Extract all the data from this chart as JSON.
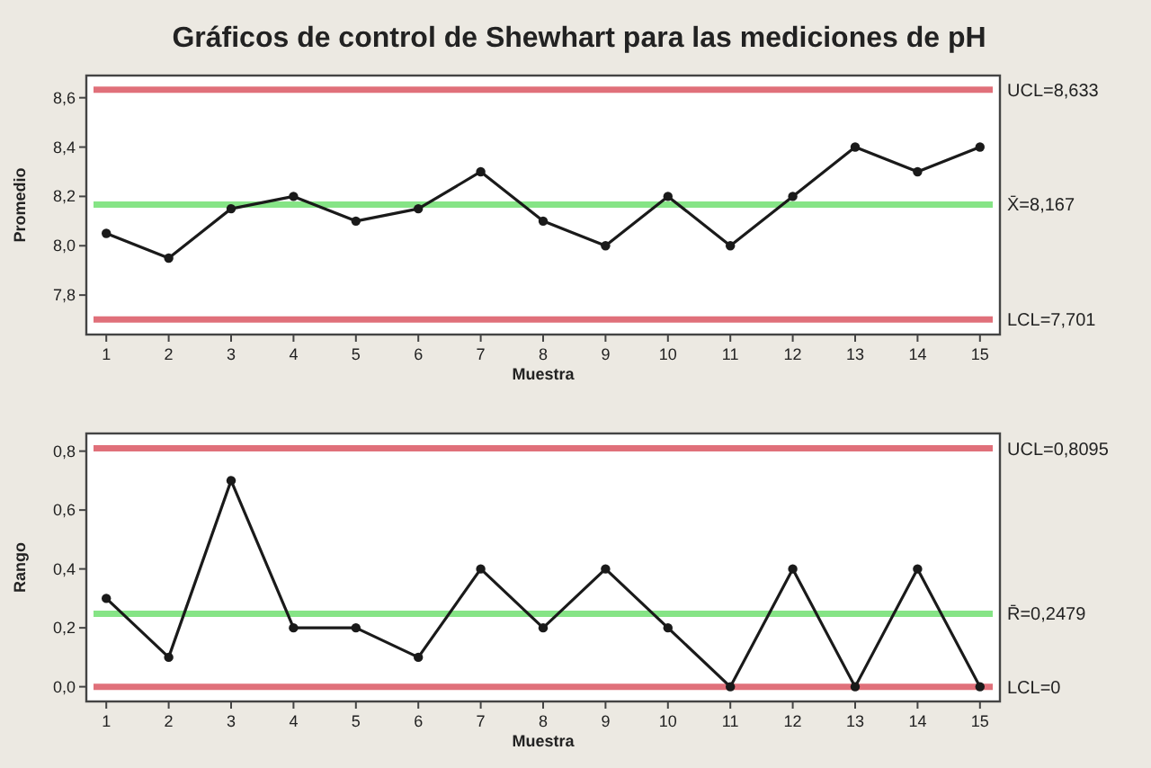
{
  "chart_data": [
    {
      "type": "line",
      "title": "Gráficos de control de Shewhart para las mediciones de pH",
      "xlabel": "Muestra",
      "ylabel": "Promedio",
      "x": [
        1,
        2,
        3,
        4,
        5,
        6,
        7,
        8,
        9,
        10,
        11,
        12,
        13,
        14,
        15
      ],
      "series": [
        {
          "color": "#1a1a1a",
          "values": [
            8.05,
            7.95,
            8.15,
            8.2,
            8.1,
            8.15,
            8.3,
            8.1,
            8.0,
            8.2,
            8.0,
            8.2,
            8.4,
            8.3,
            8.4
          ]
        }
      ],
      "xlim": [
        0.68,
        15.32
      ],
      "xticks": [
        1,
        2,
        3,
        4,
        5,
        6,
        7,
        8,
        9,
        10,
        11,
        12,
        13,
        14,
        15
      ],
      "ylim": [
        7.64,
        8.69
      ],
      "yticks": [
        {
          "value": 7.8,
          "label": "7,8"
        },
        {
          "value": 8.0,
          "label": "8,0"
        },
        {
          "value": 8.2,
          "label": "8,2"
        },
        {
          "value": 8.4,
          "label": "8,4"
        },
        {
          "value": 8.6,
          "label": "8,6"
        }
      ],
      "ref_lines": [
        {
          "axis": "y",
          "value": 8.633,
          "label": "UCL=8,633",
          "color": "#e0707a"
        },
        {
          "axis": "y",
          "value": 8.167,
          "label": "X̄=8,167",
          "color": "#86e486"
        },
        {
          "axis": "y",
          "value": 7.701,
          "label": "LCL=7,701",
          "color": "#e0707a"
        }
      ],
      "grid": false,
      "marker": "circle",
      "line_style": "solid"
    },
    {
      "type": "line",
      "xlabel": "Muestra",
      "ylabel": "Rango",
      "x": [
        1,
        2,
        3,
        4,
        5,
        6,
        7,
        8,
        9,
        10,
        11,
        12,
        13,
        14,
        15
      ],
      "series": [
        {
          "color": "#1a1a1a",
          "values": [
            0.3,
            0.1,
            0.7,
            0.2,
            0.2,
            0.1,
            0.4,
            0.2,
            0.4,
            0.2,
            0.0,
            0.4,
            0.0,
            0.4,
            0.0
          ]
        }
      ],
      "xlim": [
        0.68,
        15.32
      ],
      "xticks": [
        1,
        2,
        3,
        4,
        5,
        6,
        7,
        8,
        9,
        10,
        11,
        12,
        13,
        14,
        15
      ],
      "ylim": [
        -0.05,
        0.86
      ],
      "yticks": [
        {
          "value": 0.0,
          "label": "0,0"
        },
        {
          "value": 0.2,
          "label": "0,2"
        },
        {
          "value": 0.4,
          "label": "0,4"
        },
        {
          "value": 0.6,
          "label": "0,6"
        },
        {
          "value": 0.8,
          "label": "0,8"
        }
      ],
      "ref_lines": [
        {
          "axis": "y",
          "value": 0.8095,
          "label": "UCL=0,8095",
          "color": "#e0707a"
        },
        {
          "axis": "y",
          "value": 0.2479,
          "label": "R̄=0,2479",
          "color": "#86e486"
        },
        {
          "axis": "y",
          "value": 0,
          "label": "LCL=0",
          "color": "#e0707a"
        }
      ],
      "grid": false,
      "marker": "circle",
      "line_style": "solid"
    }
  ]
}
